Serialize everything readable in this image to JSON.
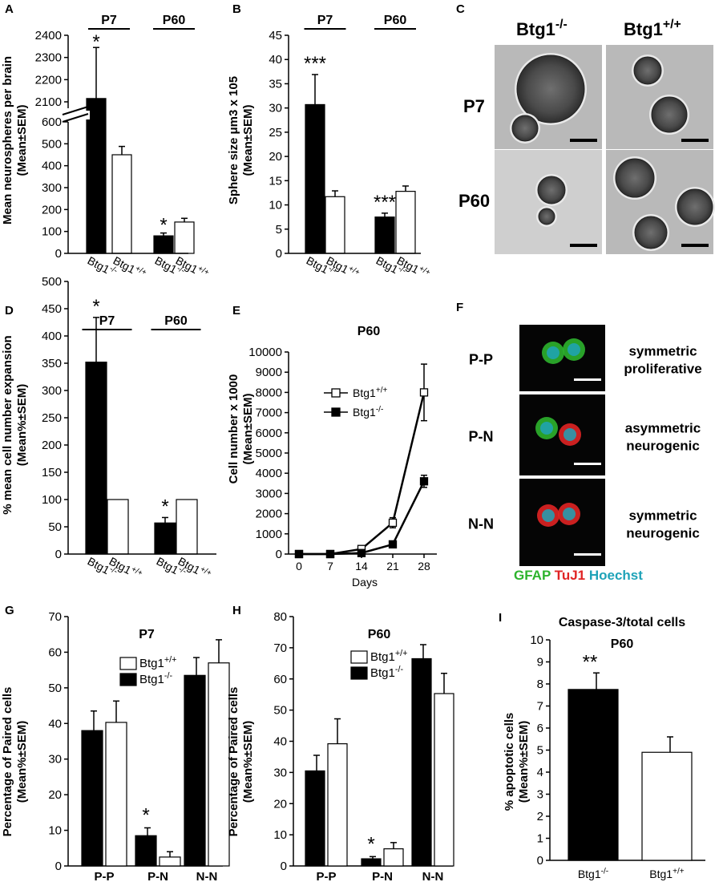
{
  "colors": {
    "black": "#000000",
    "white": "#ffffff",
    "gfap": "#2db32d",
    "tuj1": "#e02424",
    "hoechst": "#1fa3b8"
  },
  "genotypes": {
    "ko_base": "Btg1",
    "ko_sup": "-/-",
    "wt_base": "Btg1",
    "wt_sup": "+/+"
  },
  "panel_C": {
    "label": "C",
    "col_headers": [
      "Btg1-/-",
      "Btg1+/+"
    ],
    "row_labels": [
      "P7",
      "P60"
    ]
  },
  "panel_F": {
    "label": "F",
    "rows": [
      {
        "code": "P-P",
        "desc1": "symmetric",
        "desc2": "proliferative"
      },
      {
        "code": "P-N",
        "desc1": "asymmetric",
        "desc2": "neurogenic"
      },
      {
        "code": "N-N",
        "desc1": "symmetric",
        "desc2": "neurogenic"
      }
    ],
    "legend": [
      "GFAP",
      "TuJ1",
      "Hoechst"
    ]
  },
  "chart_data": [
    {
      "panel": "A",
      "type": "bar",
      "ylabel1": "Mean neurospheres per brain",
      "ylabel2": "(Mean±SEM)",
      "axis_break": true,
      "yticks_low": [
        0,
        100,
        200,
        300,
        400,
        500,
        600
      ],
      "yticks_high": [
        2100,
        2200,
        2300,
        2400
      ],
      "groups": [
        "P7",
        "P60"
      ],
      "values": [
        2115,
        450,
        80,
        143
      ],
      "errors": [
        230,
        38,
        13,
        17
      ],
      "significance": [
        "*",
        "",
        "*",
        ""
      ]
    },
    {
      "panel": "B",
      "type": "bar",
      "ylabel1": "Sphere size μm3 x 105",
      "ylabel2": "(Mean±SEM)",
      "ylim": [
        0,
        45
      ],
      "yticks": [
        0,
        5,
        10,
        15,
        20,
        25,
        30,
        35,
        40,
        45
      ],
      "groups": [
        "P7",
        "P60"
      ],
      "values": [
        30.7,
        11.7,
        7.5,
        12.8
      ],
      "errors": [
        6.2,
        1.2,
        0.8,
        1.1
      ],
      "significance": [
        "***",
        "",
        "***",
        ""
      ]
    },
    {
      "panel": "D",
      "type": "bar",
      "ylabel1": "% mean cell number expansion",
      "ylabel2": "(Mean%±SEM)",
      "ylim": [
        0,
        500
      ],
      "yticks": [
        0,
        50,
        100,
        150,
        200,
        250,
        300,
        350,
        400,
        450,
        500
      ],
      "groups": [
        "P7",
        "P60"
      ],
      "values": [
        352,
        100,
        57,
        100
      ],
      "errors": [
        82,
        0,
        10,
        0
      ],
      "significance": [
        "*",
        "",
        "*",
        ""
      ]
    },
    {
      "panel": "E",
      "type": "line",
      "title": "P60",
      "ylabel1": "Cell number x 1000",
      "ylabel2": "(Mean±SEM)",
      "xlabel": "Days",
      "x": [
        0,
        7,
        14,
        21,
        28
      ],
      "ylim": [
        0,
        10000
      ],
      "yticks": [
        0,
        1000,
        2000,
        3000,
        4000,
        5000,
        6000,
        7000,
        8000,
        9000,
        10000
      ],
      "series": [
        {
          "name": "Btg1+/+",
          "values": [
            0,
            0,
            250,
            1550,
            8000
          ],
          "errors": [
            0,
            0,
            80,
            250,
            1400
          ]
        },
        {
          "name": "Btg1-/-",
          "values": [
            0,
            0,
            50,
            480,
            3600
          ],
          "errors": [
            0,
            0,
            20,
            60,
            300
          ]
        }
      ]
    },
    {
      "panel": "G",
      "type": "bar",
      "title": "P7",
      "ylabel1": "Percentage of Paired cells",
      "ylabel2": "(Mean%±SEM)",
      "ylim": [
        0,
        70
      ],
      "yticks": [
        0,
        10,
        20,
        30,
        40,
        50,
        60,
        70
      ],
      "categories": [
        "P-P",
        "P-N",
        "N-N"
      ],
      "series": [
        {
          "name": "Btg1-/-",
          "values": [
            38,
            8.5,
            53.5
          ],
          "errors": [
            5.5,
            2.2,
            5
          ]
        },
        {
          "name": "Btg1+/+",
          "values": [
            40.3,
            2.5,
            57
          ],
          "errors": [
            6,
            1.5,
            6.5
          ]
        }
      ],
      "significance": [
        "",
        "*",
        ""
      ]
    },
    {
      "panel": "H",
      "type": "bar",
      "title": "P60",
      "ylabel1": "Percentage of Paired cells",
      "ylabel2": "(Mean%±SEM)",
      "ylim": [
        0,
        80
      ],
      "yticks": [
        0,
        10,
        20,
        30,
        40,
        50,
        60,
        70,
        80
      ],
      "categories": [
        "P-P",
        "P-N",
        "N-N"
      ],
      "series": [
        {
          "name": "Btg1-/-",
          "values": [
            30.5,
            2.3,
            66.5
          ],
          "errors": [
            5,
            0.7,
            4.5
          ]
        },
        {
          "name": "Btg1+/+",
          "values": [
            39.2,
            5.5,
            55.3
          ],
          "errors": [
            8,
            2,
            6.5
          ]
        }
      ],
      "significance": [
        "",
        "*",
        ""
      ]
    },
    {
      "panel": "I",
      "type": "bar",
      "title": "Caspase-3/total cells",
      "subtitle": "P60",
      "ylabel1": "% apoptotic cells",
      "ylabel2": "(Mean%±SEM)",
      "ylim": [
        0,
        10
      ],
      "yticks": [
        0,
        1,
        2,
        3,
        4,
        5,
        6,
        7,
        8,
        9,
        10
      ],
      "categories": [
        "Btg1-/-",
        "Btg1+/+"
      ],
      "values": [
        7.75,
        4.9
      ],
      "errors": [
        0.75,
        0.7
      ],
      "significance": [
        "**",
        ""
      ]
    }
  ]
}
